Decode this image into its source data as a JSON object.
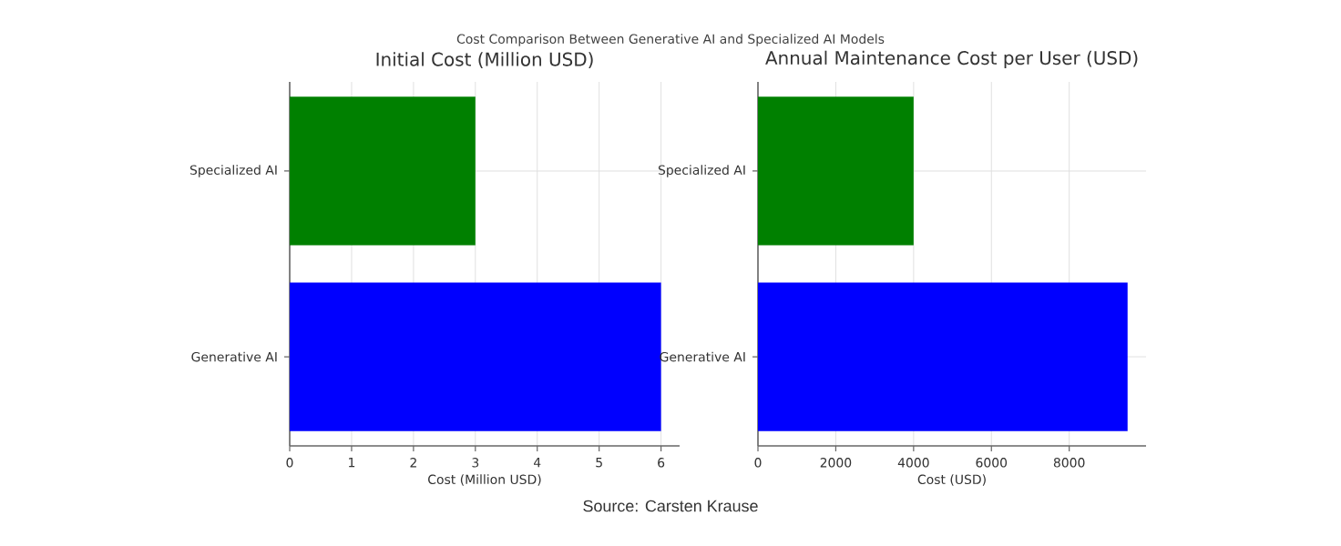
{
  "chart_data": [
    {
      "type": "other",
      "title": "Cost Comparison Between Generative AI and Specialized AI Models",
      "annotations": [
        "Source: Carsten Krause"
      ]
    },
    {
      "type": "bar",
      "orientation": "horizontal",
      "title": "Initial Cost (Million USD)",
      "xlabel": "Cost (Million USD)",
      "categories": [
        "Specialized AI",
        "Generative AI"
      ],
      "values": [
        3,
        6
      ],
      "colors": [
        "#008000",
        "#0000ff"
      ],
      "xlim": [
        0,
        6.3
      ],
      "xticks": [
        0,
        1,
        2,
        3,
        4,
        5,
        6
      ],
      "grid": true
    },
    {
      "type": "bar",
      "orientation": "horizontal",
      "title": "Annual Maintenance Cost per User (USD)",
      "xlabel": "Cost (USD)",
      "categories": [
        "Specialized AI",
        "Generative AI"
      ],
      "values": [
        4000,
        9500
      ],
      "colors": [
        "#008000",
        "#0000ff"
      ],
      "xlim": [
        0,
        9975
      ],
      "xticks": [
        0,
        2000,
        4000,
        6000,
        8000
      ],
      "grid": true
    }
  ]
}
